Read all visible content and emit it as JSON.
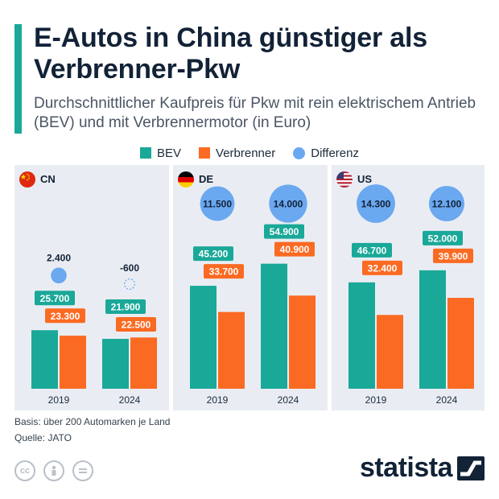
{
  "title": "E-Autos in China günstiger als Verbrenner-Pkw",
  "subtitle": "Durchschnittlicher Kaufpreis für Pkw mit rein elektrischem Antrieb (BEV) und mit Verbrennermotor (in Euro)",
  "legend": [
    "BEV",
    "Verbrenner",
    "Differenz"
  ],
  "colors": {
    "bev": "#1aa898",
    "verbrenner": "#fb6a22",
    "differenz": "#6aa8f0",
    "accent": "#1aa898"
  },
  "chart_data": {
    "type": "bar",
    "panels": [
      {
        "country": "CN",
        "flag": "flag-cn-icon",
        "categories": [
          "2019",
          "2024"
        ],
        "series": [
          {
            "name": "BEV",
            "values": [
              25700,
              21900
            ],
            "labels": [
              "25.700",
              "21.900"
            ]
          },
          {
            "name": "Verbrenner",
            "values": [
              23300,
              22500
            ],
            "labels": [
              "23.300",
              "22.500"
            ]
          }
        ],
        "differenz": {
          "values": [
            2400,
            -600
          ],
          "labels": [
            "2.400",
            "-600"
          ]
        }
      },
      {
        "country": "DE",
        "flag": "flag-de-icon",
        "categories": [
          "2019",
          "2024"
        ],
        "series": [
          {
            "name": "BEV",
            "values": [
              45200,
              54900
            ],
            "labels": [
              "45.200",
              "54.900"
            ]
          },
          {
            "name": "Verbrenner",
            "values": [
              33700,
              40900
            ],
            "labels": [
              "33.700",
              "40.900"
            ]
          }
        ],
        "differenz": {
          "values": [
            11500,
            14000
          ],
          "labels": [
            "11.500",
            "14.000"
          ]
        }
      },
      {
        "country": "US",
        "flag": "flag-us-icon",
        "categories": [
          "2019",
          "2024"
        ],
        "series": [
          {
            "name": "BEV",
            "values": [
              46700,
              52000
            ],
            "labels": [
              "46.700",
              "52.000"
            ]
          },
          {
            "name": "Verbrenner",
            "values": [
              32400,
              39900
            ],
            "labels": [
              "32.400",
              "39.900"
            ]
          }
        ],
        "differenz": {
          "values": [
            14300,
            12100
          ],
          "labels": [
            "14.300",
            "12.100"
          ]
        }
      }
    ]
  },
  "footer": {
    "basis": "Basis: über 200 Automarken je Land",
    "quelle": "Quelle: JATO",
    "license_icons": [
      "cc-icon",
      "person-icon",
      "equals-icon"
    ],
    "brand": "statista"
  }
}
